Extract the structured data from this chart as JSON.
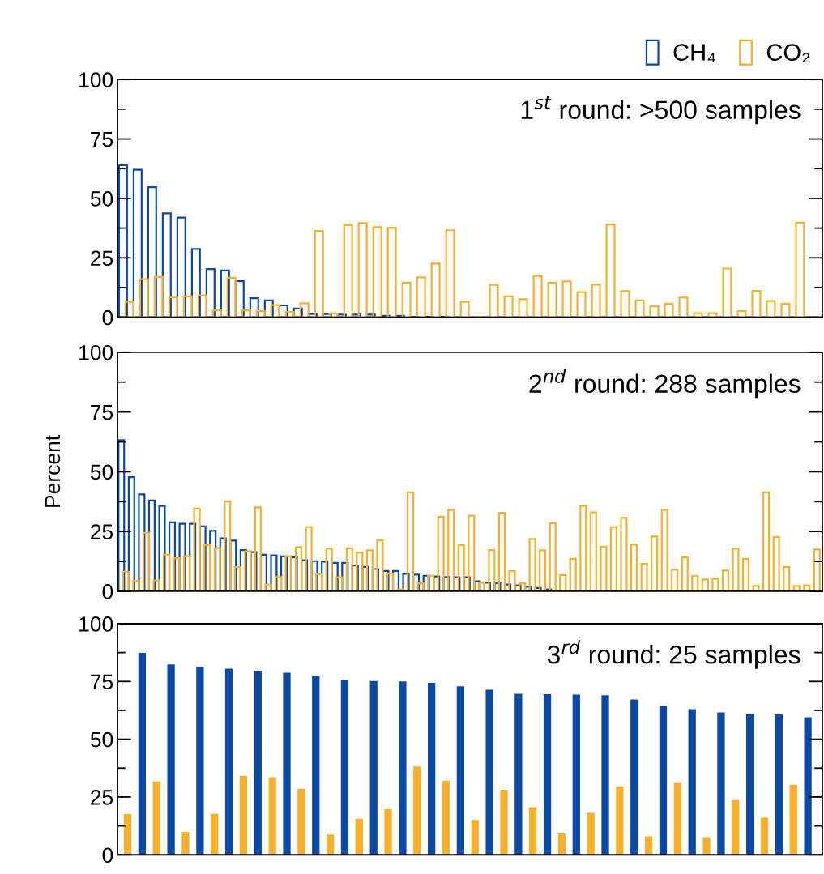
{
  "chart_data": [
    {
      "type": "bar",
      "title": "1$^{st}$ round: >500 samples",
      "categories": [
        null,
        null,
        null,
        null,
        null,
        null,
        null,
        null,
        null,
        null,
        null,
        null,
        null,
        null,
        null,
        null,
        null,
        null,
        null,
        null,
        null,
        null,
        null,
        null,
        null,
        null,
        null,
        null,
        null,
        null,
        null,
        null,
        null,
        null,
        null,
        null,
        null,
        null,
        null,
        null,
        null,
        null,
        null,
        null,
        null,
        null,
        null,
        null
      ],
      "series": [
        {
          "name": "CH₄",
          "color": "#0a4aa6",
          "values": [
            64,
            62,
            54.7,
            43.7,
            41.9,
            28.7,
            20.3,
            19.7,
            15.2,
            8,
            7.1,
            5,
            3.7,
            1.4,
            1.4,
            1.1,
            1.1,
            1.1,
            0.6,
            0.6,
            0.2,
            0.2,
            0.2,
            0,
            0,
            0,
            0,
            0,
            0,
            0,
            0,
            0,
            0,
            0,
            0,
            0,
            0,
            0,
            0,
            0,
            0,
            0,
            0,
            0,
            0,
            0,
            0,
            0
          ]
        },
        {
          "name": "CO₂",
          "color": "#f6b02a",
          "values": [
            6.5,
            16,
            17,
            8.4,
            8.8,
            9.2,
            2.9,
            16.6,
            2.9,
            2.6,
            5.1,
            2.2,
            5.9,
            36.3,
            1.6,
            38.8,
            39.6,
            37.9,
            37.6,
            14.6,
            16.8,
            22.6,
            36.6,
            6.5,
            0.2,
            13.6,
            8.8,
            7.6,
            17.4,
            14.6,
            15.1,
            10.6,
            13.7,
            39,
            11,
            7.1,
            4.6,
            5.7,
            8.3,
            1.7,
            1.7,
            20.5,
            2.6,
            11.1,
            6.8,
            5.7,
            39.8,
            0.2
          ]
        }
      ],
      "ylim": [
        0,
        100
      ],
      "yticks": [
        0,
        {
          "value": 12.5,
          "label": null
        },
        25,
        {
          "value": 37.5,
          "label": null
        },
        50,
        {
          "value": 62.5,
          "label": null
        },
        75,
        {
          "value": 87.5,
          "label": null
        },
        100
      ],
      "tick_labels": "y",
      "legend": "top right",
      "grid": false
    },
    {
      "type": "bar",
      "title": "2$^{nd}$ round: 288 samples",
      "ylabel": "Percent",
      "categories": [
        null,
        null,
        null,
        null,
        null,
        null,
        null,
        null,
        null,
        null,
        null,
        null,
        null,
        null,
        null,
        null,
        null,
        null,
        null,
        null,
        null,
        null,
        null,
        null,
        null,
        null,
        null,
        null,
        null,
        null,
        null,
        null,
        null,
        null,
        null,
        null,
        null,
        null,
        null,
        null,
        null,
        null,
        null,
        null,
        null,
        null,
        null,
        null,
        null,
        null,
        null,
        null,
        null,
        null,
        null,
        null,
        null,
        null,
        null,
        null,
        null,
        null,
        null,
        null,
        null,
        null,
        null,
        null,
        null
      ],
      "series": [
        {
          "color": "#0a4aa6",
          "values": [
            63.2,
            47.7,
            40.5,
            38,
            35.7,
            28.8,
            28.2,
            28.2,
            27.1,
            25.3,
            22.1,
            21.2,
            17.2,
            16.4,
            15.3,
            15,
            14.6,
            14.2,
            13,
            12.6,
            12.4,
            11.9,
            11.9,
            10.8,
            10.2,
            9.3,
            8.5,
            8.5,
            7.3,
            7,
            6.5,
            6.2,
            6,
            5.9,
            5.9,
            4.2,
            3.6,
            3.3,
            2.8,
            2.5,
            1.9,
            1.4,
            0.8,
            null,
            0,
            0,
            0,
            0,
            0,
            0,
            0,
            0,
            0,
            0,
            0,
            0,
            0,
            0,
            0,
            0,
            0,
            0,
            0,
            0,
            0,
            0,
            0,
            0,
            0
          ]
        },
        {
          "color": "#f6b02a",
          "values": [
            8.2,
            4.4,
            24.4,
            4.5,
            15.3,
            13.8,
            14.7,
            34.6,
            19.3,
            18.1,
            37.6,
            10.1,
            16.7,
            35.1,
            2.8,
            6,
            14.7,
            18.5,
            26.9,
            7.1,
            17.8,
            5.9,
            18,
            16.2,
            17.1,
            21.3,
            7.4,
            0.8,
            41.4,
            3.3,
            6.5,
            31.2,
            34,
            19.3,
            31.6,
            3.6,
            17.2,
            32.8,
            8.4,
            3.3,
            21.9,
            17.1,
            28.5,
            6.8,
            13.6,
            35.7,
            33,
            18.7,
            26.9,
            30.7,
            19.5,
            11.5,
            22.9,
            34,
            9,
            14.2,
            6.5,
            4.9,
            5.2,
            8.7,
            17.8,
            13.6,
            2.2,
            41.4,
            22.7,
            10.2,
            2.2,
            2.5,
            17.5
          ]
        }
      ],
      "ylim": [
        0,
        100
      ],
      "yticks": [
        0,
        {
          "value": 12.5,
          "label": null
        },
        25,
        {
          "value": 37.5,
          "label": null
        },
        50,
        {
          "value": 62.5,
          "label": null
        },
        75,
        {
          "value": 87.5,
          "label": null
        },
        100
      ],
      "tick_labels": "y",
      "grid": false
    },
    {
      "type": "bar",
      "title": "3$^{rd}$ round: 25 samples",
      "categories": [
        null,
        null,
        null,
        null,
        null,
        null,
        null,
        null,
        null,
        null,
        null,
        null,
        null,
        null,
        null,
        null,
        null,
        null,
        null,
        null,
        null,
        null,
        null,
        null
      ],
      "series": [
        {
          "color": "#f6b02a",
          "values": [
            17.6,
            31.7,
            9.9,
            17.7,
            34.2,
            33.6,
            28.6,
            8.8,
            15.6,
            19.7,
            38.2,
            32.1,
            15.1,
            28.1,
            20.6,
            9.2,
            18.1,
            29.6,
            8,
            31.1,
            7.6,
            23.7,
            16,
            30.3
          ]
        },
        {
          "color": "#0a4aa6",
          "values": [
            87.4,
            82.4,
            81.3,
            80.5,
            79.4,
            78.8,
            77.3,
            75.6,
            75.2,
            75,
            74.4,
            72.9,
            71.4,
            69.7,
            69.5,
            69.3,
            69.1,
            67.2,
            64.3,
            63,
            61.6,
            60.9,
            60.7,
            59.5
          ]
        }
      ],
      "ylim": [
        0,
        100
      ],
      "yticks": [
        0,
        {
          "value": 12.5,
          "label": null
        },
        25,
        {
          "value": 37.5,
          "label": null
        },
        50,
        {
          "value": 62.5,
          "label": null
        },
        75,
        {
          "value": 87.5,
          "label": null
        },
        100
      ],
      "tick_labels": "y",
      "grid": false
    }
  ]
}
